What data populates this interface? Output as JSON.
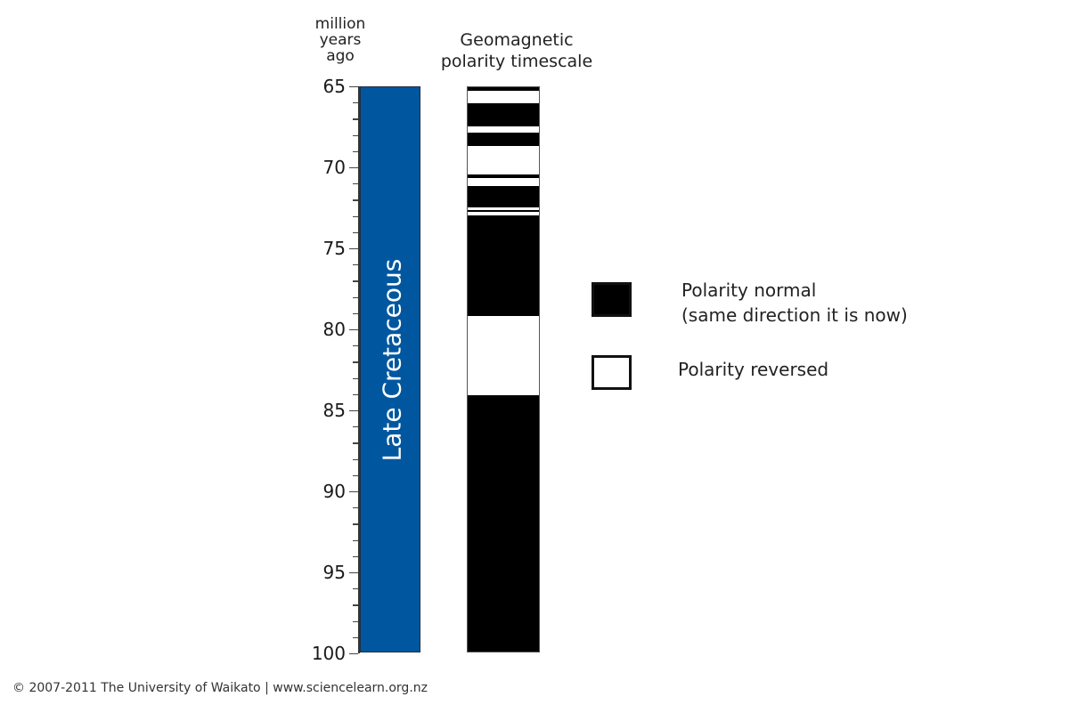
{
  "axis": {
    "title_lines": [
      "million",
      "years",
      "ago"
    ],
    "ticks": [
      65,
      70,
      75,
      80,
      85,
      90,
      95,
      100
    ],
    "min": 65,
    "max": 100
  },
  "columns": {
    "era_label": "Late Cretaceous",
    "era_color": "#00579f",
    "polarity_title_lines": [
      "Geomagnetic",
      "polarity timescale"
    ]
  },
  "legend": {
    "normal_line1": "Polarity normal",
    "normal_line2": "(same direction it is now)",
    "reversed": "Polarity reversed"
  },
  "footer": "© 2007-2011 The University of Waikato | www.sciencelearn.org.nz",
  "chart_data": {
    "type": "bar",
    "title": "Geomagnetic polarity timescale",
    "ylabel": "million years ago",
    "ylim": [
      65,
      100
    ],
    "yticks": [
      65,
      70,
      75,
      80,
      85,
      90,
      95,
      100
    ],
    "era": {
      "name": "Late Cretaceous",
      "start": 65,
      "end": 100
    },
    "legend": [
      {
        "label": "Polarity normal (same direction it is now)",
        "color": "#000000"
      },
      {
        "label": "Polarity reversed",
        "color": "#ffffff"
      }
    ],
    "intervals": [
      {
        "start": 65.0,
        "end": 65.2,
        "polarity": "normal"
      },
      {
        "start": 65.2,
        "end": 66.0,
        "polarity": "reversed"
      },
      {
        "start": 66.0,
        "end": 67.4,
        "polarity": "normal"
      },
      {
        "start": 67.4,
        "end": 67.8,
        "polarity": "reversed"
      },
      {
        "start": 67.8,
        "end": 68.6,
        "polarity": "normal"
      },
      {
        "start": 68.6,
        "end": 70.4,
        "polarity": "reversed"
      },
      {
        "start": 70.4,
        "end": 70.6,
        "polarity": "normal"
      },
      {
        "start": 70.6,
        "end": 71.1,
        "polarity": "reversed"
      },
      {
        "start": 71.1,
        "end": 72.4,
        "polarity": "normal"
      },
      {
        "start": 72.4,
        "end": 72.6,
        "polarity": "reversed"
      },
      {
        "start": 72.6,
        "end": 72.7,
        "polarity": "normal"
      },
      {
        "start": 72.7,
        "end": 72.9,
        "polarity": "reversed"
      },
      {
        "start": 72.9,
        "end": 79.1,
        "polarity": "normal"
      },
      {
        "start": 79.1,
        "end": 84.0,
        "polarity": "reversed"
      },
      {
        "start": 84.0,
        "end": 100.0,
        "polarity": "normal"
      }
    ]
  }
}
